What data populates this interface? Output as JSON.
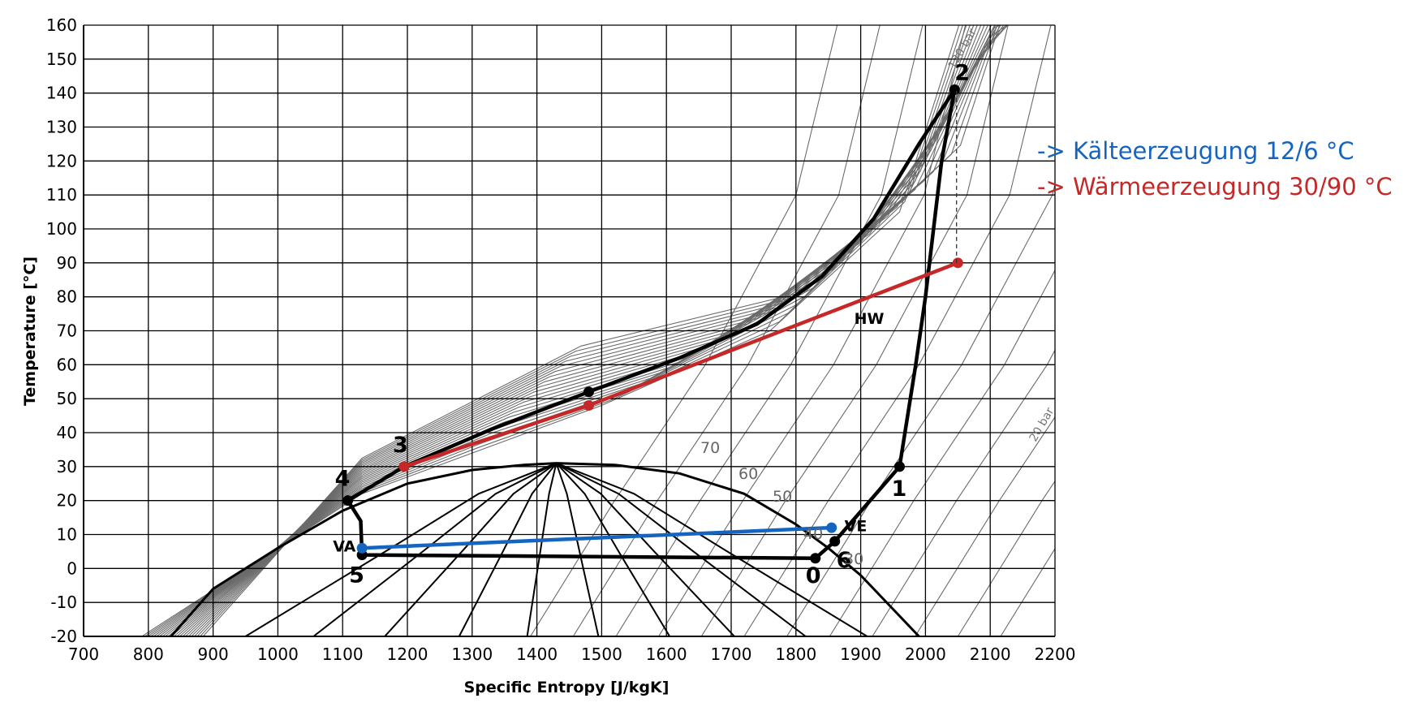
{
  "chart_data": {
    "type": "line",
    "xlabel": "Specific Entropy [J/kgK]",
    "ylabel": "Temperature [°C]",
    "xlim": [
      700,
      2200
    ],
    "ylim": [
      -20,
      160
    ],
    "xticks": [
      700,
      800,
      900,
      1000,
      1100,
      1200,
      1300,
      1400,
      1500,
      1600,
      1700,
      1800,
      1900,
      2000,
      2100,
      2200
    ],
    "yticks": [
      -20,
      -10,
      0,
      10,
      20,
      30,
      40,
      50,
      60,
      70,
      80,
      90,
      100,
      110,
      120,
      130,
      140,
      150,
      160
    ],
    "grid": true,
    "legend": {
      "placement": "top-right",
      "items": [
        {
          "label": "-> Kälteerzeugung 12/6 °C",
          "color": "#1565c0"
        },
        {
          "label": "-> Wärmeerzeugung 30/90 °C",
          "color": "#c62828"
        }
      ]
    },
    "series": [
      {
        "color": "#000000",
        "role": "refrigerant cycle",
        "points": [
          [
            1830,
            3
          ],
          [
            1860,
            8
          ],
          [
            1960,
            30
          ],
          [
            1985,
            60
          ],
          [
            2000,
            80
          ],
          [
            2025,
            120
          ],
          [
            2045,
            141
          ],
          [
            1990,
            125
          ],
          [
            1920,
            103
          ],
          [
            1840,
            86
          ],
          [
            1740,
            72
          ],
          [
            1620,
            62
          ],
          [
            1480,
            52
          ],
          [
            1330,
            41
          ],
          [
            1195,
            30
          ],
          [
            1108,
            20
          ],
          [
            1128,
            14
          ],
          [
            1130,
            4
          ],
          [
            1830,
            3
          ]
        ],
        "markers": [
          {
            "label": "0",
            "x": 1830,
            "y": 3
          },
          {
            "label": "6",
            "x": 1860,
            "y": 8
          },
          {
            "label": "1",
            "x": 1960,
            "y": 30
          },
          {
            "label": "2",
            "x": 2045,
            "y": 141
          },
          {
            "label": "",
            "x": 1480,
            "y": 52
          },
          {
            "label": "3",
            "x": 1195,
            "y": 30
          },
          {
            "label": "4",
            "x": 1108,
            "y": 20
          },
          {
            "label": "5",
            "x": 1130,
            "y": 4
          }
        ]
      },
      {
        "color": "#c62828",
        "role": "heating water",
        "points": [
          [
            1195,
            30
          ],
          [
            1480,
            48
          ],
          [
            2050,
            90
          ]
        ],
        "markers": [
          {
            "label": "",
            "x": 1195,
            "y": 30
          },
          {
            "label": "",
            "x": 1480,
            "y": 48
          },
          {
            "label": "",
            "x": 2050,
            "y": 90
          }
        ]
      },
      {
        "color": "#1565c0",
        "role": "chilled water",
        "points": [
          [
            1130,
            6
          ],
          [
            1855,
            12
          ]
        ],
        "markers": [
          {
            "label": "",
            "x": 1130,
            "y": 6
          },
          {
            "label": "",
            "x": 1855,
            "y": 12
          }
        ]
      }
    ],
    "saturation_dome": {
      "color": "#000000",
      "liquid": [
        [
          835,
          -20
        ],
        [
          900,
          -6
        ],
        [
          1000,
          6
        ],
        [
          1100,
          17
        ],
        [
          1200,
          25
        ],
        [
          1300,
          29
        ],
        [
          1380,
          30.5
        ],
        [
          1430,
          31
        ]
      ],
      "vapor": [
        [
          1430,
          31
        ],
        [
          1520,
          30.5
        ],
        [
          1620,
          28
        ],
        [
          1720,
          22
        ],
        [
          1800,
          13
        ],
        [
          1850,
          6
        ],
        [
          1900,
          -2
        ],
        [
          1950,
          -12
        ],
        [
          1990,
          -20
        ]
      ]
    },
    "quality_lines": {
      "color": "#000000",
      "ends": [
        950,
        1055,
        1165,
        1280,
        1385,
        1495,
        1605,
        1705,
        1815,
        1910
      ]
    },
    "isobars": {
      "color": "#6b6b6b",
      "labels": [
        "120 bar",
        "70",
        "60",
        "50",
        "40",
        "30",
        "20 bar"
      ]
    },
    "annotations": [
      {
        "text": "HW",
        "x": 1890,
        "y": 72
      },
      {
        "text": "VA",
        "x": 1085,
        "y": 5
      },
      {
        "text": "VE",
        "x": 1875,
        "y": 11
      }
    ],
    "dashed_guide": {
      "x": 2048,
      "from": 90,
      "to": 141
    }
  }
}
